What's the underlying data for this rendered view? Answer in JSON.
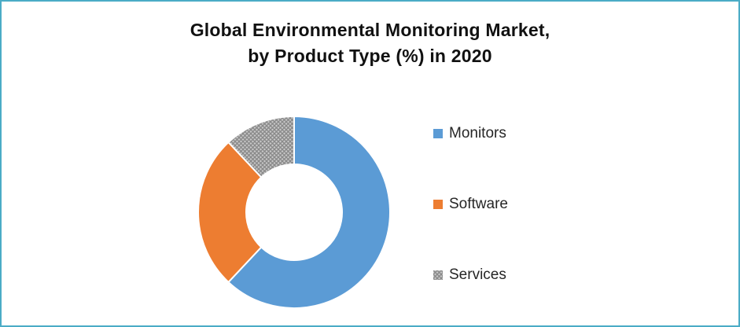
{
  "title": {
    "line1": "Global Environmental Monitoring Market,",
    "line2": "by Product Type (%) in 2020"
  },
  "chart_data": {
    "type": "pie",
    "subtype": "donut",
    "title": "Global Environmental Monitoring Market, by Product Type (%) in 2020",
    "categories": [
      "Monitors",
      "Software",
      "Services"
    ],
    "values": [
      62,
      26,
      12
    ],
    "unit": "%",
    "colors": [
      "#5B9BD5",
      "#ED7D31",
      "#A5A5A5"
    ],
    "patterns": [
      null,
      null,
      "diagonal-crosshatch"
    ],
    "legend_position": "right",
    "start_angle": 0,
    "inner_radius_ratio": 0.5,
    "data_labels": false
  },
  "frame": {
    "border_color": "#4BACC6",
    "background": "#FFFFFF"
  }
}
